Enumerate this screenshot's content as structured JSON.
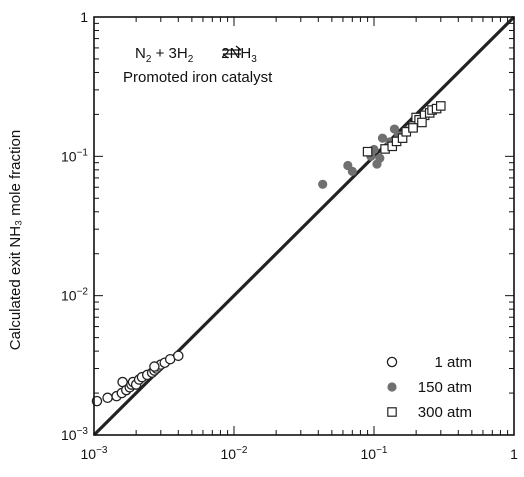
{
  "chart_data": {
    "type": "scatter",
    "title": "",
    "xlabel": "",
    "ylabel": "Calculated exit NH₃ mole fraction",
    "xscale": "log",
    "yscale": "log",
    "xlim": [
      0.001,
      1
    ],
    "ylim": [
      0.001,
      1
    ],
    "grid": false,
    "legend_position": "bottom-right",
    "x_tick_labels": [
      {
        "value": 0.001,
        "base": "10",
        "exp": "−3"
      },
      {
        "value": 0.01,
        "base": "10",
        "exp": "−2"
      },
      {
        "value": 0.1,
        "base": "10",
        "exp": "−1"
      },
      {
        "value": 1,
        "base": "1",
        "exp": ""
      }
    ],
    "y_tick_labels": [
      {
        "value": 0.001,
        "base": "10",
        "exp": "−3"
      },
      {
        "value": 0.01,
        "base": "10",
        "exp": "−2"
      },
      {
        "value": 0.1,
        "base": "10",
        "exp": "−1"
      },
      {
        "value": 1,
        "base": "1",
        "exp": ""
      }
    ],
    "annotation": {
      "equation": {
        "n2": "N",
        "n2_sub": "2",
        "plus_part": " + 3H",
        "h2_sub": "2",
        "nh3": "2NH",
        "nh3_sub": "3"
      },
      "catalyst": "Promoted iron catalyst"
    },
    "reference_line": {
      "from": [
        0.001,
        0.001
      ],
      "to": [
        1,
        1
      ],
      "color": "#222222"
    },
    "series": [
      {
        "name": "1 atm",
        "marker": "open-circle",
        "color": "#222222",
        "points": [
          [
            0.00105,
            0.00175
          ],
          [
            0.00125,
            0.00185
          ],
          [
            0.00145,
            0.0019
          ],
          [
            0.00158,
            0.002
          ],
          [
            0.0016,
            0.0024
          ],
          [
            0.0017,
            0.0021
          ],
          [
            0.0018,
            0.0022
          ],
          [
            0.00185,
            0.0023
          ],
          [
            0.0019,
            0.0024
          ],
          [
            0.002,
            0.0023
          ],
          [
            0.0021,
            0.0025
          ],
          [
            0.0022,
            0.0026
          ],
          [
            0.0024,
            0.0027
          ],
          [
            0.0026,
            0.0028
          ],
          [
            0.0027,
            0.0029
          ],
          [
            0.0028,
            0.003
          ],
          [
            0.0029,
            0.0031
          ],
          [
            0.003,
            0.0032
          ],
          [
            0.0027,
            0.0031
          ],
          [
            0.0032,
            0.0033
          ],
          [
            0.0035,
            0.0035
          ],
          [
            0.004,
            0.0037
          ]
        ]
      },
      {
        "name": "150 atm",
        "marker": "filled-circle",
        "color": "#707070",
        "points": [
          [
            0.043,
            0.063
          ],
          [
            0.065,
            0.086
          ],
          [
            0.07,
            0.078
          ],
          [
            0.095,
            0.1
          ],
          [
            0.1,
            0.112
          ],
          [
            0.105,
            0.088
          ],
          [
            0.11,
            0.097
          ],
          [
            0.115,
            0.135
          ],
          [
            0.13,
            0.127
          ],
          [
            0.14,
            0.157
          ],
          [
            0.15,
            0.14
          ],
          [
            0.17,
            0.152
          ]
        ]
      },
      {
        "name": "300 atm",
        "marker": "open-square",
        "color": "#222222",
        "points": [
          [
            0.09,
            0.108
          ],
          [
            0.12,
            0.113
          ],
          [
            0.135,
            0.118
          ],
          [
            0.145,
            0.128
          ],
          [
            0.16,
            0.135
          ],
          [
            0.17,
            0.15
          ],
          [
            0.19,
            0.165
          ],
          [
            0.2,
            0.19
          ],
          [
            0.21,
            0.183
          ],
          [
            0.23,
            0.197
          ],
          [
            0.25,
            0.205
          ],
          [
            0.26,
            0.215
          ],
          [
            0.28,
            0.22
          ],
          [
            0.3,
            0.23
          ],
          [
            0.22,
            0.175
          ],
          [
            0.19,
            0.16
          ]
        ]
      }
    ]
  }
}
